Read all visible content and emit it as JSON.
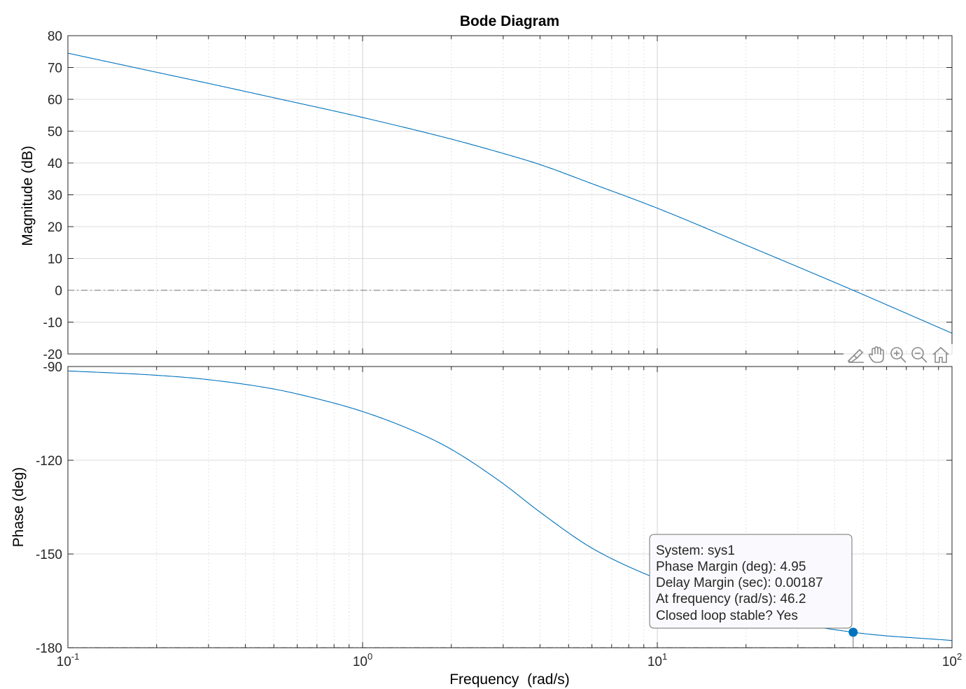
{
  "chart_data": {
    "type": "line",
    "title": "Bode Diagram",
    "xlabel": "Frequency  (rad/s)",
    "xscale": "log",
    "xlim": [
      0.1,
      100
    ],
    "x_ticks": [
      {
        "base": "10",
        "exp": "-1"
      },
      {
        "base": "10",
        "exp": "0"
      },
      {
        "base": "10",
        "exp": "1"
      },
      {
        "base": "10",
        "exp": "2"
      }
    ],
    "grid": true,
    "line_color": "#0072BD",
    "panels": [
      {
        "name": "magnitude",
        "ylabel": "Magnitude (dB)",
        "ylim": [
          -20,
          80
        ],
        "yticks": [
          "80",
          "70",
          "60",
          "50",
          "40",
          "30",
          "20",
          "10",
          "0",
          "-10",
          "-20"
        ],
        "reference_line": 0,
        "series": [
          {
            "x": [
              0.1,
              0.2,
              0.3,
              0.5,
              1,
              2,
              3,
              4,
              6,
              10,
              20,
              46.2,
              100
            ],
            "values": [
              74.5,
              68.5,
              65,
              60.5,
              54.3,
              47.5,
              43,
              39.5,
              33.5,
              25.8,
              14.2,
              0,
              -13.5
            ]
          }
        ]
      },
      {
        "name": "phase",
        "ylabel": "Phase (deg)",
        "ylim": [
          -180,
          -90
        ],
        "yticks": [
          "-90",
          "-120",
          "-150",
          "-180"
        ],
        "reference_line": -180,
        "series": [
          {
            "x": [
              0.1,
              0.2,
              0.3,
              0.5,
              0.7,
              1,
              1.5,
              2,
              3,
              4,
              6,
              10,
              20,
              46.2,
              100
            ],
            "values": [
              -91.4,
              -92.8,
              -94.2,
              -97.2,
              -100.3,
              -104.4,
              -110.7,
              -116.5,
              -127.5,
              -136.6,
              -148.1,
              -158,
              -168.5,
              -175.05,
              -177.7
            ]
          }
        ]
      }
    ],
    "marker": {
      "x": 46.2,
      "y": -175.05,
      "color": "#0072BD"
    },
    "datatip": {
      "system": "System: sys1",
      "phase_margin": "Phase Margin (deg): 4.95",
      "delay_margin": "Delay Margin (sec): 0.00187",
      "frequency": "At frequency (rad/s): 46.2",
      "stable": "Closed loop stable? Yes"
    }
  },
  "toolbar": {
    "icons": [
      "brush-icon",
      "pan-hand-icon",
      "zoom-in-icon",
      "zoom-out-icon",
      "home-icon"
    ]
  }
}
